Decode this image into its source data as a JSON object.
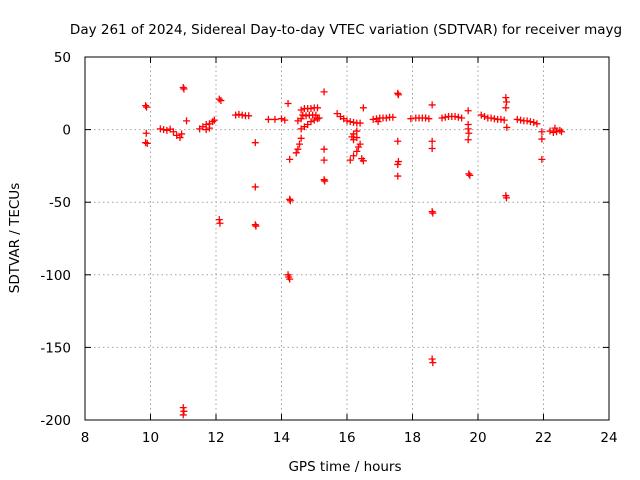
{
  "chart_data": {
    "type": "scatter",
    "title": "Day 261 of 2024, Sidereal Day-to-day VTEC variation (SDTVAR) for receiver mayg",
    "xlabel": "GPS time / hours",
    "ylabel": "SDTVAR / TECUs",
    "xlim": [
      8,
      24
    ],
    "ylim": [
      -200,
      50
    ],
    "xticks": [
      8,
      10,
      12,
      14,
      16,
      18,
      20,
      22,
      24
    ],
    "yticks": [
      50,
      0,
      -50,
      -100,
      -150,
      -200
    ],
    "grid": true,
    "marker": "+",
    "color": "#ff0000",
    "series": [
      {
        "name": "SDTVAR",
        "points": [
          [
            9.85,
            16.5
          ],
          [
            9.88,
            15.5
          ],
          [
            9.87,
            -2.5
          ],
          [
            9.85,
            -9.0
          ],
          [
            9.9,
            -9.5
          ],
          [
            10.3,
            0.5
          ],
          [
            10.4,
            0.0
          ],
          [
            10.5,
            -0.5
          ],
          [
            10.6,
            0.3
          ],
          [
            10.7,
            -1.5
          ],
          [
            10.8,
            -4.0
          ],
          [
            10.9,
            -5.5
          ],
          [
            10.95,
            -3.0
          ],
          [
            11.0,
            29.0
          ],
          [
            11.02,
            28.0
          ],
          [
            11.1,
            6.0
          ],
          [
            11.0,
            -191.5
          ],
          [
            11.02,
            -194.0
          ],
          [
            11.0,
            -196.5
          ],
          [
            11.5,
            0.5
          ],
          [
            11.6,
            2.0
          ],
          [
            11.7,
            3.5
          ],
          [
            11.8,
            4.0
          ],
          [
            11.9,
            5.5
          ],
          [
            11.95,
            6.5
          ],
          [
            11.7,
            0.0
          ],
          [
            11.8,
            1.0
          ],
          [
            12.1,
            21.0
          ],
          [
            12.15,
            20.0
          ],
          [
            12.1,
            -62.0
          ],
          [
            12.12,
            -64.5
          ],
          [
            12.6,
            10.0
          ],
          [
            12.7,
            10.5
          ],
          [
            12.8,
            10.0
          ],
          [
            12.9,
            9.5
          ],
          [
            13.0,
            9.5
          ],
          [
            13.2,
            -9.0
          ],
          [
            13.2,
            -39.5
          ],
          [
            13.2,
            -65.5
          ],
          [
            13.22,
            -66.5
          ],
          [
            13.6,
            7.0
          ],
          [
            13.8,
            7.0
          ],
          [
            14.0,
            7.5
          ],
          [
            14.1,
            6.5
          ],
          [
            14.2,
            18.0
          ],
          [
            14.25,
            -20.5
          ],
          [
            14.25,
            -48.0
          ],
          [
            14.27,
            -49.0
          ],
          [
            14.2,
            -100.0
          ],
          [
            14.22,
            -101.5
          ],
          [
            14.25,
            -103.0
          ],
          [
            14.6,
            13.5
          ],
          [
            14.7,
            14.5
          ],
          [
            14.8,
            14.5
          ],
          [
            14.9,
            14.5
          ],
          [
            15.0,
            15.0
          ],
          [
            15.1,
            15.0
          ],
          [
            14.65,
            10.0
          ],
          [
            14.75,
            9.5
          ],
          [
            14.85,
            10.0
          ],
          [
            14.95,
            10.0
          ],
          [
            15.05,
            10.0
          ],
          [
            14.6,
            0.5
          ],
          [
            14.7,
            2.0
          ],
          [
            14.8,
            3.5
          ],
          [
            14.9,
            5.5
          ],
          [
            15.0,
            6.5
          ],
          [
            15.1,
            7.5
          ],
          [
            15.15,
            8.0
          ],
          [
            14.6,
            -6.0
          ],
          [
            14.55,
            -10.0
          ],
          [
            14.5,
            -13.5
          ],
          [
            14.45,
            -16.0
          ],
          [
            14.6,
            7.5
          ],
          [
            14.5,
            6.0
          ],
          [
            15.3,
            26.0
          ],
          [
            15.3,
            -13.5
          ],
          [
            15.3,
            -21.0
          ],
          [
            15.3,
            -34.5
          ],
          [
            15.32,
            -35.5
          ],
          [
            15.7,
            11.0
          ],
          [
            15.8,
            9.0
          ],
          [
            15.9,
            7.5
          ],
          [
            16.0,
            6.0
          ],
          [
            16.1,
            5.5
          ],
          [
            16.2,
            5.0
          ],
          [
            16.3,
            4.5
          ],
          [
            16.4,
            4.5
          ],
          [
            16.15,
            -5.0
          ],
          [
            16.2,
            -3.0
          ],
          [
            16.3,
            -1.0
          ],
          [
            16.2,
            -7.0
          ],
          [
            16.3,
            -5.5
          ],
          [
            16.1,
            -21.0
          ],
          [
            16.2,
            -18.0
          ],
          [
            16.3,
            -15.0
          ],
          [
            16.35,
            -12.0
          ],
          [
            16.4,
            -10.0
          ],
          [
            16.5,
            15.0
          ],
          [
            16.45,
            -20.0
          ],
          [
            16.5,
            -21.5
          ],
          [
            16.8,
            7.0
          ],
          [
            16.9,
            7.5
          ],
          [
            17.0,
            8.0
          ],
          [
            17.1,
            8.0
          ],
          [
            17.2,
            8.0
          ],
          [
            17.3,
            8.5
          ],
          [
            17.4,
            8.5
          ],
          [
            16.95,
            5.5
          ],
          [
            17.55,
            25.0
          ],
          [
            17.57,
            24.0
          ],
          [
            17.55,
            -8.0
          ],
          [
            17.55,
            -24.0
          ],
          [
            17.57,
            -22.0
          ],
          [
            17.55,
            -32.0
          ],
          [
            17.95,
            7.5
          ],
          [
            18.1,
            8.0
          ],
          [
            18.2,
            8.0
          ],
          [
            18.3,
            8.0
          ],
          [
            18.4,
            8.0
          ],
          [
            18.5,
            7.5
          ],
          [
            18.6,
            17.0
          ],
          [
            18.6,
            -8.0
          ],
          [
            18.6,
            -13.0
          ],
          [
            18.6,
            -56.5
          ],
          [
            18.62,
            -57.5
          ],
          [
            18.6,
            -158.0
          ],
          [
            18.62,
            -160.5
          ],
          [
            18.9,
            8.0
          ],
          [
            19.0,
            8.5
          ],
          [
            19.1,
            9.0
          ],
          [
            19.2,
            9.0
          ],
          [
            19.3,
            9.0
          ],
          [
            19.4,
            8.5
          ],
          [
            19.5,
            8.0
          ],
          [
            19.7,
            13.0
          ],
          [
            19.7,
            3.5
          ],
          [
            19.7,
            0.5
          ],
          [
            19.72,
            -2.5
          ],
          [
            19.7,
            -7.0
          ],
          [
            19.75,
            -31.5
          ],
          [
            19.72,
            -30.5
          ],
          [
            20.1,
            10.0
          ],
          [
            20.2,
            9.0
          ],
          [
            20.3,
            8.0
          ],
          [
            20.4,
            8.0
          ],
          [
            20.5,
            7.5
          ],
          [
            20.6,
            7.0
          ],
          [
            20.7,
            7.0
          ],
          [
            20.8,
            6.5
          ],
          [
            20.85,
            22.0
          ],
          [
            20.87,
            19.0
          ],
          [
            20.85,
            15.0
          ],
          [
            20.88,
            1.5
          ],
          [
            20.85,
            -45.5
          ],
          [
            20.87,
            -47.0
          ],
          [
            21.2,
            7.0
          ],
          [
            21.3,
            6.5
          ],
          [
            21.4,
            6.0
          ],
          [
            21.5,
            6.0
          ],
          [
            21.6,
            5.5
          ],
          [
            21.7,
            5.0
          ],
          [
            21.8,
            4.0
          ],
          [
            21.95,
            -1.5
          ],
          [
            21.95,
            -6.5
          ],
          [
            21.95,
            -20.5
          ],
          [
            22.2,
            -1.0
          ],
          [
            22.3,
            -2.0
          ],
          [
            22.4,
            -1.5
          ],
          [
            22.5,
            -0.5
          ],
          [
            22.55,
            -1.5
          ],
          [
            22.35,
            1.0
          ]
        ]
      }
    ]
  }
}
